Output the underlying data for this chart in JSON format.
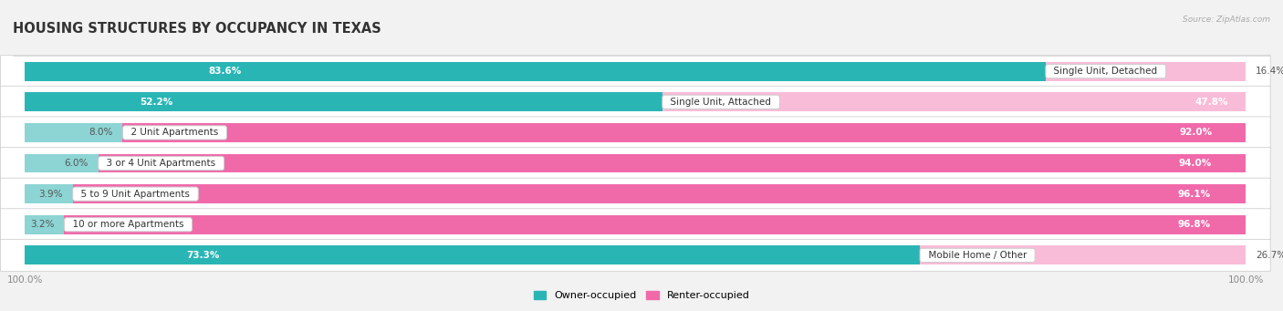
{
  "title": "HOUSING STRUCTURES BY OCCUPANCY IN TEXAS",
  "source": "Source: ZipAtlas.com",
  "categories": [
    "Single Unit, Detached",
    "Single Unit, Attached",
    "2 Unit Apartments",
    "3 or 4 Unit Apartments",
    "5 to 9 Unit Apartments",
    "10 or more Apartments",
    "Mobile Home / Other"
  ],
  "owner_pct": [
    83.6,
    52.2,
    8.0,
    6.0,
    3.9,
    3.2,
    73.3
  ],
  "renter_pct": [
    16.4,
    47.8,
    92.0,
    94.0,
    96.1,
    96.8,
    26.7
  ],
  "owner_color_strong": "#2ab5b5",
  "owner_color_light": "#8dd4d4",
  "renter_color_strong": "#f06aaa",
  "renter_color_light": "#f9bcd8",
  "bg_color": "#f2f2f2",
  "row_bg_light": "#ffffff",
  "row_bg_dark": "#e8e8e8",
  "bar_height": 0.62,
  "title_fontsize": 10.5,
  "label_fontsize": 7.5,
  "tick_fontsize": 7.5,
  "legend_fontsize": 8
}
